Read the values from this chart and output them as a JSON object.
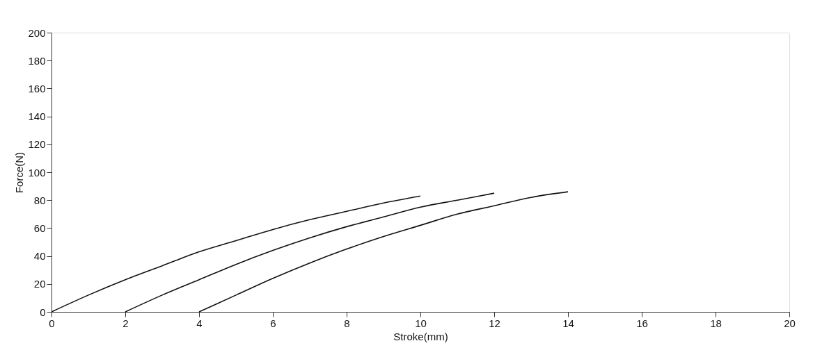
{
  "chart_data": {
    "type": "line",
    "xlabel": "Stroke(mm)",
    "ylabel": "Force(N)",
    "xlim": [
      0,
      20
    ],
    "ylim": [
      0,
      200
    ],
    "xticks": [
      0,
      2,
      4,
      6,
      8,
      10,
      12,
      14,
      16,
      18,
      20
    ],
    "yticks": [
      0,
      20,
      40,
      60,
      80,
      100,
      120,
      140,
      160,
      180,
      200
    ],
    "grid": false,
    "legend": false,
    "marker": "none",
    "line_style": "solid",
    "series": [
      {
        "color": "#111111",
        "x": [
          0,
          1,
          2,
          3,
          4,
          5,
          6,
          7,
          8,
          9,
          10
        ],
        "values": [
          0,
          12,
          23,
          33,
          43,
          51,
          59,
          66,
          72,
          78,
          83
        ]
      },
      {
        "color": "#111111",
        "x": [
          2,
          3,
          4,
          5,
          6,
          7,
          8,
          9,
          10,
          11,
          12
        ],
        "values": [
          0,
          12,
          23,
          34,
          44,
          53,
          61,
          68,
          75,
          80,
          85
        ]
      },
      {
        "color": "#111111",
        "x": [
          4,
          5,
          6,
          7,
          8,
          9,
          10,
          11,
          12,
          13,
          14
        ],
        "values": [
          0,
          12,
          24,
          35,
          45,
          54,
          62,
          70,
          76,
          82,
          86
        ]
      }
    ]
  }
}
